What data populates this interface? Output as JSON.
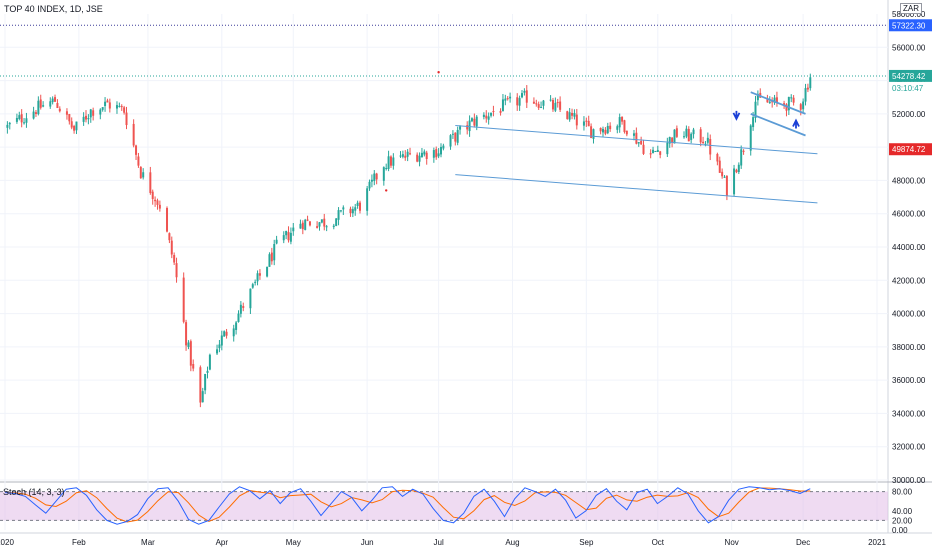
{
  "header": {
    "title": "TOP 40 INDEX, 1D, JSE",
    "currency": "ZAR"
  },
  "price_scale": {
    "ticks": [
      "56000.00",
      "54000.00",
      "52000.00",
      "50000.00",
      "48000.00",
      "46000.00",
      "44000.00",
      "42000.00",
      "40000.00",
      "38000.00",
      "36000.00",
      "34000.00",
      "32000.00",
      "30000.00"
    ],
    "top_partial": "58000.00"
  },
  "price_labels": {
    "high_line": "57322.30",
    "last_price": "54278.42",
    "countdown": "03:10:47",
    "marker": "49874.72"
  },
  "time_axis": [
    "2020",
    "Feb",
    "Mar",
    "Apr",
    "May",
    "Jun",
    "Jul",
    "Aug",
    "Sep",
    "Oct",
    "Nov",
    "Dec",
    "2021"
  ],
  "stoch": {
    "label": "Stoch (14, 3, 3)",
    "ticks": [
      "80.00",
      "40.00",
      "20.00",
      "0.00"
    ],
    "upper": 80,
    "lower": 20
  },
  "colors": {
    "up": "#26a69a",
    "down": "#ef5350",
    "channel": "#5b9bd5",
    "stoch_k": "#2962ff",
    "stoch_d": "#ff6d00",
    "stoch_band": "#e1bee7",
    "high_line": "#3d3d99",
    "marker_label": "#e5292a",
    "last_label": "#26a69a"
  },
  "chart_data": {
    "type": "candlestick",
    "title": "TOP 40 INDEX, 1D, JSE",
    "ylim": [
      30000,
      58000
    ],
    "ylog": false,
    "grid": true,
    "high_line": 57322.3,
    "last_price": 54278.42,
    "marker_price": 49874.72,
    "x_labels": [
      "2020",
      "Feb",
      "Mar",
      "Apr",
      "May",
      "Jun",
      "Jul",
      "Aug",
      "Sep",
      "Oct",
      "Nov",
      "Dec",
      "2021"
    ],
    "price_path": [
      {
        "date": "2020-01-02",
        "close": 51200
      },
      {
        "date": "2020-01-14",
        "close": 52300
      },
      {
        "date": "2020-01-22",
        "close": 52800
      },
      {
        "date": "2020-01-30",
        "close": 51000
      },
      {
        "date": "2020-02-06",
        "close": 52200
      },
      {
        "date": "2020-02-13",
        "close": 52600
      },
      {
        "date": "2020-02-20",
        "close": 52200
      },
      {
        "date": "2020-02-27",
        "close": 48500
      },
      {
        "date": "2020-03-06",
        "close": 46500
      },
      {
        "date": "2020-03-12",
        "close": 43000
      },
      {
        "date": "2020-03-17",
        "close": 38500
      },
      {
        "date": "2020-03-23",
        "close": 34500
      },
      {
        "date": "2020-03-27",
        "close": 37500
      },
      {
        "date": "2020-04-06",
        "close": 39500
      },
      {
        "date": "2020-04-14",
        "close": 41500
      },
      {
        "date": "2020-04-24",
        "close": 44000
      },
      {
        "date": "2020-05-04",
        "close": 45500
      },
      {
        "date": "2020-05-15",
        "close": 45500
      },
      {
        "date": "2020-05-29",
        "close": 46500
      },
      {
        "date": "2020-06-08",
        "close": 49000
      },
      {
        "date": "2020-06-19",
        "close": 49500
      },
      {
        "date": "2020-07-01",
        "close": 49800
      },
      {
        "date": "2020-07-15",
        "close": 51500
      },
      {
        "date": "2020-07-29",
        "close": 52500
      },
      {
        "date": "2020-08-07",
        "close": 53000
      },
      {
        "date": "2020-08-20",
        "close": 52300
      },
      {
        "date": "2020-09-03",
        "close": 51000
      },
      {
        "date": "2020-09-16",
        "close": 51500
      },
      {
        "date": "2020-09-28",
        "close": 49500
      },
      {
        "date": "2020-10-09",
        "close": 50800
      },
      {
        "date": "2020-10-21",
        "close": 50500
      },
      {
        "date": "2020-10-30",
        "close": 47500
      },
      {
        "date": "2020-11-06",
        "close": 50000
      },
      {
        "date": "2020-11-11",
        "close": 52800
      },
      {
        "date": "2020-11-20",
        "close": 52600
      },
      {
        "date": "2020-11-30",
        "close": 52600
      },
      {
        "date": "2020-12-04",
        "close": 54278
      }
    ],
    "annotations": [
      {
        "type": "channel",
        "from": {
          "date": "2020-07-08",
          "price": 51300
        },
        "to": {
          "date": "2020-12-07",
          "price": 49600
        },
        "parallel_offset": -2950
      },
      {
        "type": "flag",
        "from": {
          "date": "2020-11-09",
          "price": 53300
        },
        "to": {
          "date": "2020-12-02",
          "price": 52000
        },
        "parallel_offset": -1300
      },
      {
        "type": "arrow-down",
        "date": "2020-11-03",
        "price": 51700
      },
      {
        "type": "arrow-up",
        "date": "2020-11-28",
        "price": 51600
      }
    ]
  },
  "stoch_data": {
    "name": "Stoch (14, 3, 3)",
    "ylim": [
      0,
      100
    ],
    "k": [
      78,
      76,
      70,
      52,
      35,
      60,
      85,
      88,
      72,
      42,
      20,
      12,
      18,
      32,
      65,
      86,
      88,
      60,
      22,
      12,
      20,
      48,
      75,
      90,
      82,
      65,
      82,
      55,
      78,
      86,
      60,
      30,
      55,
      80,
      68,
      40,
      62,
      88,
      90,
      70,
      85,
      75,
      45,
      20,
      15,
      35,
      70,
      85,
      60,
      28,
      65,
      88,
      80,
      70,
      85,
      62,
      25,
      40,
      72,
      86,
      60,
      42,
      78,
      85,
      55,
      70,
      88,
      75,
      40,
      15,
      28,
      62,
      85,
      90,
      88,
      84,
      86,
      82,
      76,
      86
    ]
  }
}
